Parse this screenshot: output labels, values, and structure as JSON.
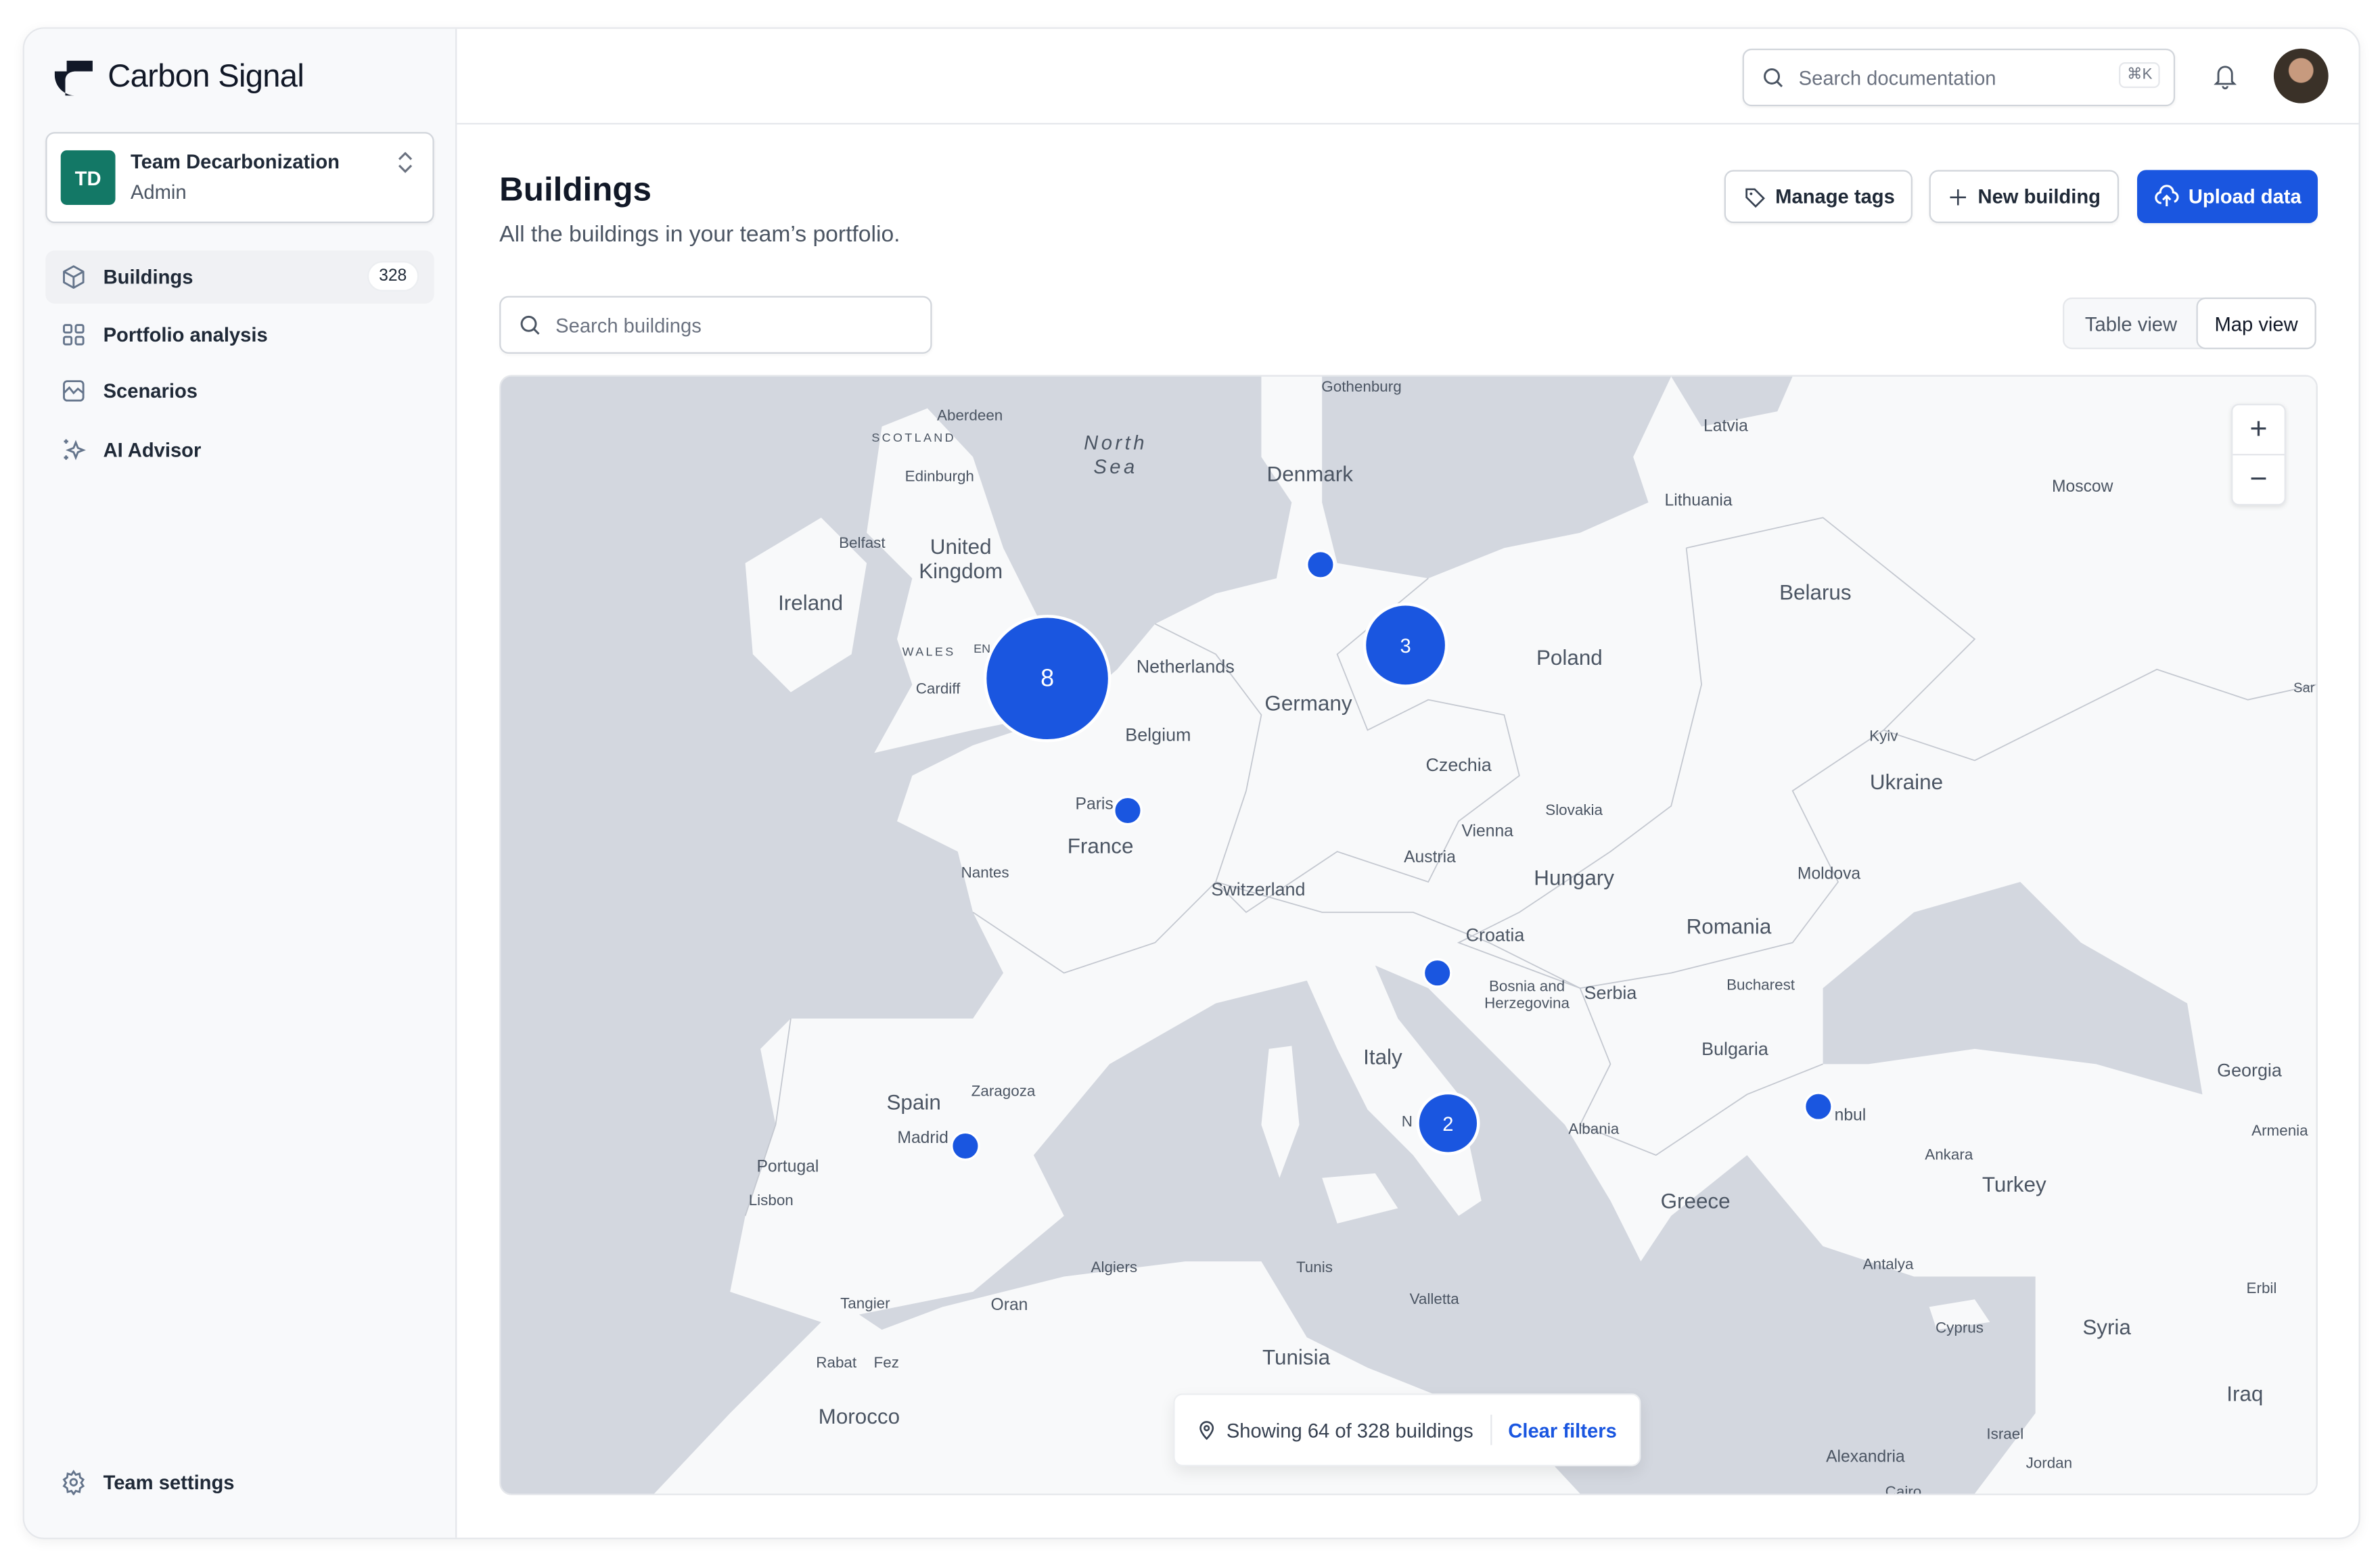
{
  "app": {
    "name": "Carbon Signal"
  },
  "team": {
    "initials": "TD",
    "name": "Team Decarbonization",
    "role": "Admin",
    "avatar_color": "#137866"
  },
  "sidebar": {
    "items": [
      {
        "label": "Buildings",
        "icon": "cube-icon",
        "count": "328",
        "active": true
      },
      {
        "label": "Portfolio analysis",
        "icon": "grid-icon"
      },
      {
        "label": "Scenarios",
        "icon": "chart-icon"
      },
      {
        "label": "AI Advisor",
        "icon": "sparkles-icon"
      }
    ],
    "settings_label": "Team settings"
  },
  "topbar": {
    "search_placeholder": "Search documentation",
    "shortcut": "⌘K"
  },
  "page": {
    "title": "Buildings",
    "subtitle": "All the buildings in your team’s portfolio.",
    "manage_tags": "Manage tags",
    "new_building": "New building",
    "upload_data": "Upload data",
    "search_placeholder": "Search buildings",
    "views": [
      "Table view",
      "Map view"
    ],
    "active_view": "Map view",
    "accent": "#1a56e0"
  },
  "map": {
    "zoom_in": "+",
    "zoom_out": "−",
    "status": "Showing 64 of 328 buildings",
    "clear_filters": "Clear filters",
    "clusters": [
      "8",
      "3",
      "2"
    ],
    "labels": [
      "Gothenburg",
      "Aberdeen",
      "SCOTLAND",
      "North",
      "Sea",
      "Edinburgh",
      "Denmark",
      "Latvia",
      "Lithuania",
      "Moscow",
      "Belfast",
      "United",
      "Kingdom",
      "Ireland",
      "Belarus",
      "WALES",
      "EN",
      "Netherlands",
      "Poland",
      "Cardiff",
      "Germany",
      "Belgium",
      "Kyiv",
      "Czechia",
      "Ukraine",
      "Slovakia",
      "Paris",
      "Vienna",
      "France",
      "Austria",
      "Nantes",
      "Hungary",
      "Moldova",
      "Switzerland",
      "Croatia",
      "Romania",
      "Bosnia and",
      "Herzegovina",
      "Serbia",
      "Bucharest",
      "Bulgaria",
      "Italy",
      "Zaragoza",
      "Spain",
      "Madrid",
      "Georgia",
      "Albania",
      "Armenia",
      "Ankara",
      "Portugal",
      "Turkey",
      "Lisbon",
      "Greece",
      "Algiers",
      "Tunis",
      "Antalya",
      "Tangier",
      "Oran",
      "Valletta",
      "Erbil",
      "Cyprus",
      "Syria",
      "Rabat",
      "Fez",
      "Tunisia",
      "Morocco",
      "Iraq",
      "Israel",
      "Alexandria",
      "Jordan",
      "N",
      "nbul",
      "Sar",
      "Cairo"
    ]
  }
}
